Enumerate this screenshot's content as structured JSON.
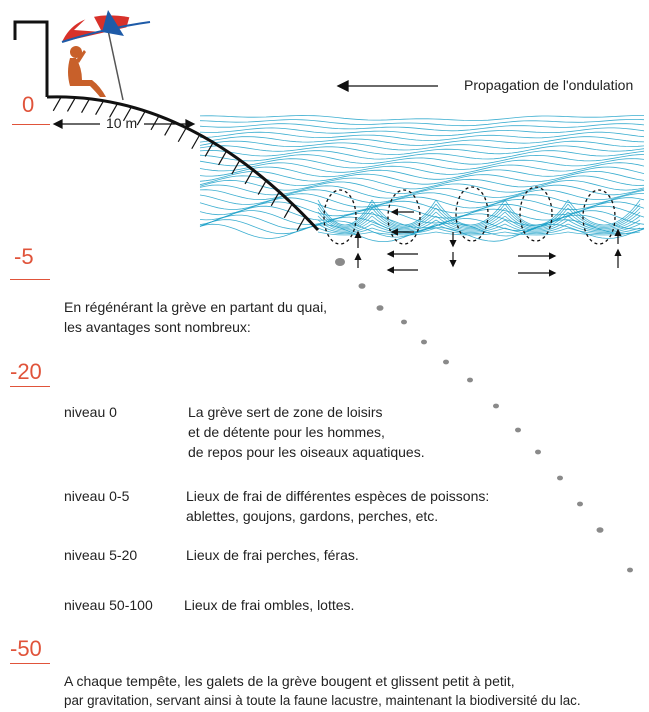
{
  "colors": {
    "accent": "#e0533a",
    "water": "#1aa0c8",
    "figure": "#c8602a",
    "umbrella_red": "#d8312a",
    "umbrella_blue": "#1e5ba8",
    "pebble": "#8a8a8a"
  },
  "header": {
    "propagation_label": "Propagation de l'ondulation",
    "distance_label": "10 m"
  },
  "depth_markers": [
    {
      "label": "0"
    },
    {
      "label": "-5"
    },
    {
      "label": "-20"
    },
    {
      "label": "-50"
    }
  ],
  "intro": {
    "line1": "En régénérant la grève en partant du quai,",
    "line2": "les avantages sont nombreux:"
  },
  "levels": [
    {
      "name": "niveau 0",
      "lines": [
        "La grève sert de zone de loisirs",
        "et de détente pour les hommes,",
        "de repos pour les oiseaux aquatiques."
      ]
    },
    {
      "name": "niveau 0-5",
      "lines": [
        "Lieux de frai de différentes espèces de poissons:",
        "ablettes, goujons, gardons, perches, etc."
      ]
    },
    {
      "name": "niveau 5-20",
      "lines": [
        "Lieux de frai perches, féras."
      ]
    },
    {
      "name": "niveau 50-100",
      "lines": [
        "Lieux de frai ombles, lottes."
      ]
    }
  ],
  "footer": {
    "line1": "A chaque tempête, les galets de la grève bougent et glissent petit à petit,",
    "line2": "par gravitation, servant ainsi à toute la faune lacustre, maintenant la biodiversité du lac."
  },
  "icons": [
    "umbrella-icon",
    "sunbather-figure",
    "quay-wall",
    "shore-profile",
    "wave-field",
    "vortex-ellipse",
    "flow-arrow",
    "pebble"
  ]
}
